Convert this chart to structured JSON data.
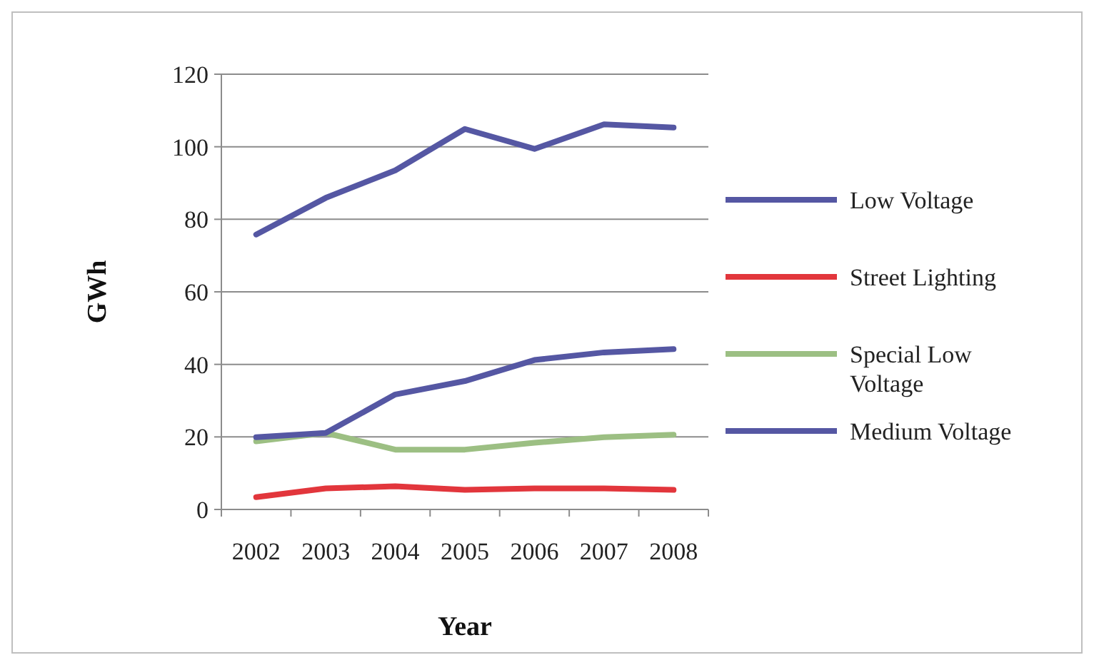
{
  "chart_data": {
    "type": "line",
    "xlabel": "Year",
    "ylabel": "GWh",
    "categories": [
      "2002",
      "2003",
      "2004",
      "2005",
      "2006",
      "2007",
      "2008"
    ],
    "series": [
      {
        "name": "Low Voltage",
        "color": "#5557a3",
        "values": [
          75.8,
          85.9,
          93.5,
          104.9,
          99.4,
          106.2,
          105.3
        ]
      },
      {
        "name": "Street Lighting",
        "color": "#e2363c",
        "values": [
          3.4,
          5.8,
          6.4,
          5.4,
          5.8,
          5.8,
          5.4
        ]
      },
      {
        "name": "Special Low Voltage",
        "color": "#9cbf83",
        "values": [
          18.8,
          21.1,
          16.5,
          16.5,
          18.4,
          19.9,
          20.6
        ]
      },
      {
        "name": "Medium Voltage",
        "color": "#5557a3",
        "values": [
          19.9,
          21.1,
          31.7,
          35.4,
          41.2,
          43.3,
          44.2
        ]
      }
    ],
    "ylim": [
      0,
      120
    ],
    "yticks": [
      0,
      20,
      40,
      60,
      80,
      100,
      120
    ],
    "grid": "y",
    "legend": "right",
    "marker": "none",
    "line_style": "solid"
  }
}
